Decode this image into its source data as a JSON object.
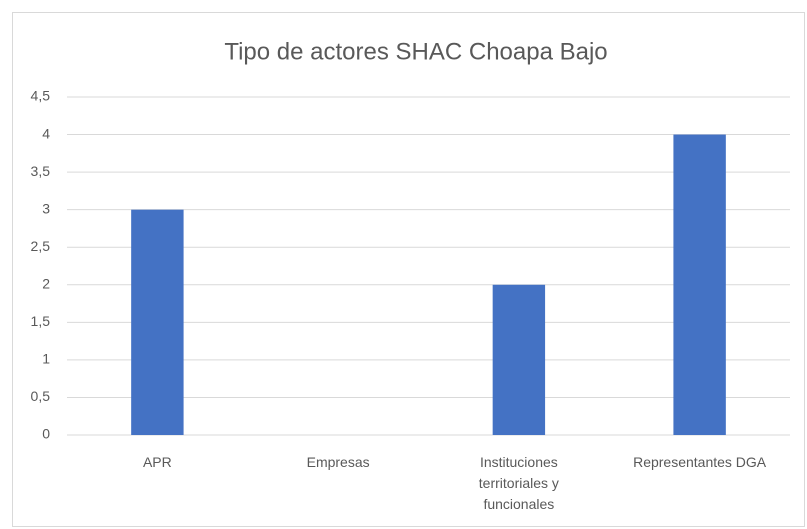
{
  "chart_data": {
    "type": "bar",
    "title": "Tipo de actores SHAC Choapa Bajo",
    "categories": [
      "APR",
      "Empresas",
      "Instituciones territoriales y funcionales",
      "Representantes DGA"
    ],
    "values": [
      3,
      0,
      2,
      4
    ],
    "color": "#4472c4",
    "ylim": [
      0,
      4.5
    ],
    "yticks": [
      0,
      {
        "value": 0.5,
        "label": "0,5"
      },
      1,
      {
        "value": 1.5,
        "label": "1,5"
      },
      2,
      {
        "value": 2.5,
        "label": "2,5"
      },
      3,
      {
        "value": 3.5,
        "label": "3,5"
      },
      4,
      {
        "value": 4.5,
        "label": "4,5"
      }
    ],
    "grid": true
  }
}
